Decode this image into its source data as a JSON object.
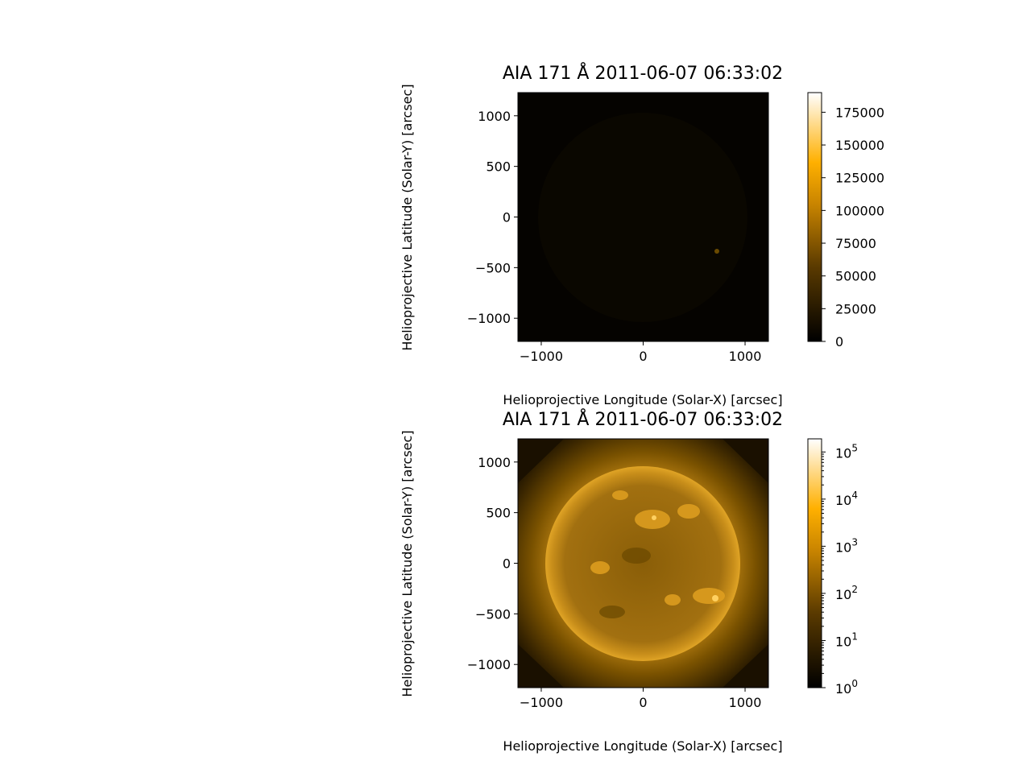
{
  "chart_data": [
    {
      "type": "heatmap",
      "title": "AIA 171 Å 2011-06-07 06:33:02",
      "xlabel": "Helioprojective Longitude (Solar-X) [arcsec]",
      "ylabel": "Helioprojective Latitude (Solar-Y) [arcsec]",
      "xlim": [
        -1229,
        1229
      ],
      "ylim": [
        -1229,
        1229
      ],
      "x_ticks": [
        "−1000",
        "0",
        "1000"
      ],
      "y_ticks": [
        "1000",
        "500",
        "0",
        "−500",
        "−1000"
      ],
      "colorbar": {
        "scale": "linear",
        "range": [
          0,
          190000
        ],
        "ticks": [
          "175000",
          "150000",
          "125000",
          "100000",
          "75000",
          "50000",
          "25000",
          "0"
        ]
      },
      "colormap": "sdoaia171"
    },
    {
      "type": "heatmap",
      "title": "AIA 171 Å 2011-06-07 06:33:02",
      "xlabel": "Helioprojective Longitude (Solar-X) [arcsec]",
      "ylabel": "Helioprojective Latitude (Solar-Y) [arcsec]",
      "xlim": [
        -1229,
        1229
      ],
      "ylim": [
        -1229,
        1229
      ],
      "x_ticks": [
        "−1000",
        "0",
        "1000"
      ],
      "y_ticks": [
        "1000",
        "500",
        "0",
        "−500",
        "−1000"
      ],
      "colorbar": {
        "scale": "log",
        "range": [
          1,
          190000
        ],
        "ticks": [
          "10",
          "10",
          "10",
          "10",
          "10",
          "10"
        ],
        "tick_exponents": [
          "5",
          "4",
          "3",
          "2",
          "1",
          "0"
        ]
      },
      "colormap": "sdoaia171"
    }
  ],
  "colors": {
    "background": "#ffffff",
    "cmap_low": "#000000",
    "cmap_mid": "#ffaa00",
    "cmap_high": "#ffffff",
    "disk": "#b07a10",
    "corona": "#7a5200"
  }
}
